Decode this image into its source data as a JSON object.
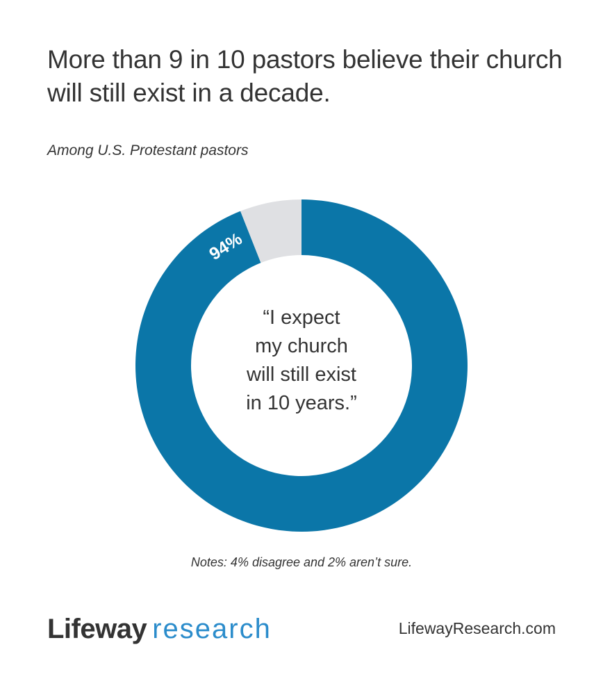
{
  "header": {
    "title": "More than 9 in 10 pastors believe their church will still exist in a decade.",
    "subtitle": "Among U.S. Protestant pastors"
  },
  "donut": {
    "value_label": "94%",
    "center_quote_lines": [
      "“I expect",
      "my church",
      "will still exist",
      "in 10 years.”"
    ]
  },
  "notes": "Notes: 4% disagree and 2% aren’t sure.",
  "footer": {
    "brand_primary": "Lifeway",
    "brand_secondary": "research",
    "website": "LifewayResearch.com"
  },
  "colors": {
    "primary_blue": "#0b76a8",
    "grey": "#dfe0e3",
    "logo_blue": "#2b8ccb",
    "text": "#333333"
  },
  "chart_data": {
    "type": "pie",
    "subtype": "donut",
    "title": "More than 9 in 10 pastors believe their church will still exist in a decade.",
    "subtitle": "Among U.S. Protestant pastors",
    "categories": [
      "Agree (I expect my church will still exist in 10 years)",
      "Disagree or not sure"
    ],
    "values": [
      94,
      6
    ],
    "labels": [
      "94%",
      ""
    ],
    "colors": [
      "#0b76a8",
      "#dfe0e3"
    ],
    "center_text": "“I expect my church will still exist in 10 years.”",
    "annotations": [
      "Notes: 4% disagree and 2% aren’t sure."
    ],
    "breakdown_of_remainder": {
      "disagree": 4,
      "not_sure": 2
    },
    "legend": "none"
  }
}
